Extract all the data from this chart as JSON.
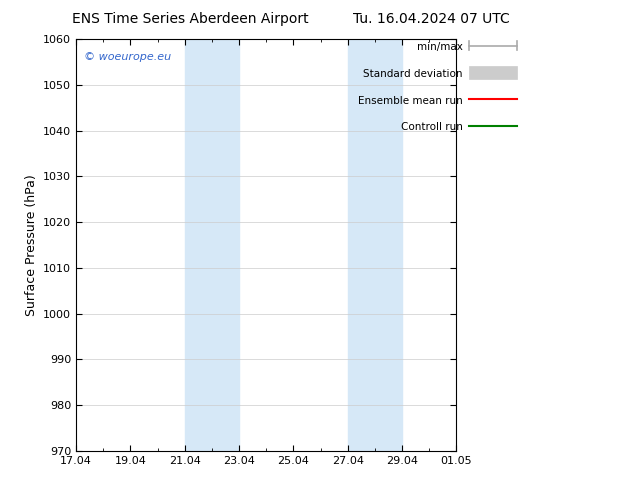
{
  "title": "ENS Time Series Aberdeen Airport",
  "title2": "Tu. 16.04.2024 07 UTC",
  "ylabel": "Surface Pressure (hPa)",
  "ylim": [
    970,
    1060
  ],
  "yticks": [
    970,
    980,
    990,
    1000,
    1010,
    1020,
    1030,
    1040,
    1050,
    1060
  ],
  "xtick_labels": [
    "17.04",
    "19.04",
    "21.04",
    "23.04",
    "25.04",
    "27.04",
    "29.04",
    "01.05"
  ],
  "xtick_positions": [
    0,
    2,
    4,
    6,
    8,
    10,
    12,
    14
  ],
  "xmin": 0,
  "xmax": 14,
  "shaded_regions": [
    {
      "xstart": 4,
      "xend": 6,
      "color": "#d6e8f7"
    },
    {
      "xstart": 10,
      "xend": 12,
      "color": "#d6e8f7"
    }
  ],
  "watermark": "© woeurope.eu",
  "legend_items": [
    {
      "label": "min/max",
      "color": "#aaaaaa",
      "style": "line_with_bar"
    },
    {
      "label": "Standard deviation",
      "color": "#cccccc",
      "style": "box"
    },
    {
      "label": "Ensemble mean run",
      "color": "red",
      "style": "line"
    },
    {
      "label": "Controll run",
      "color": "green",
      "style": "line"
    }
  ],
  "background_color": "#ffffff",
  "plot_bg_color": "#ffffff",
  "grid_color": "#cccccc",
  "title_fontsize": 10,
  "tick_fontsize": 8,
  "ylabel_fontsize": 9,
  "legend_fontsize": 7.5
}
